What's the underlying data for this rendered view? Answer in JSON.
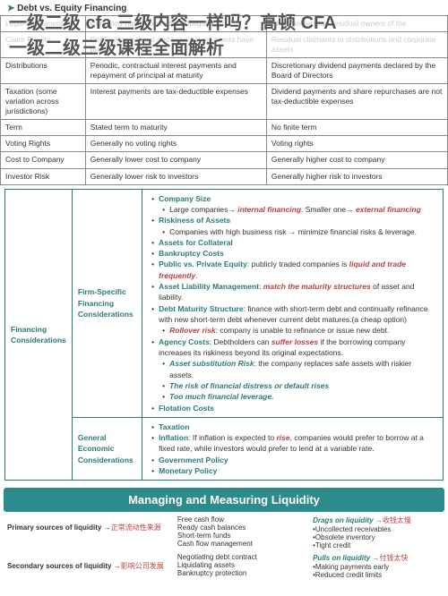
{
  "title_line1": "一级二级 cfa 三级内容一样吗？高顿 CFA",
  "title_line2": "一级二级三级课程全面解析",
  "topic_header": "Debt vs. Equity Financing",
  "table1": {
    "rows": [
      {
        "c1": "Legal Agreement",
        "c2": "Company has a contractual obligation to",
        "c3": "Shareholders are residual owners of the"
      },
      {
        "c1": "Claim Priority",
        "c2": "Debtholder interest and principal payments have priority",
        "c3": "Residual claimants to distributions and corporate assets"
      },
      {
        "c1": "Distributions",
        "c2": "Periodic, contractual interest payments and repayment of principal at maturity",
        "c3": "Discretionary dividend payments declared by the Board of Directors"
      },
      {
        "c1": "Taxation (some variation across jurisdictions)",
        "c2": "Interest payments are tax-deductible expenses",
        "c3": "Dividend payments and share repurchases are not tax-deductible expenses"
      },
      {
        "c1": "Term",
        "c2": "Stated term to maturity",
        "c3": "No finite term"
      },
      {
        "c1": "Voting Rights",
        "c2": "Generally no voting rights",
        "c3": "Voting rights"
      },
      {
        "c1": "Cost to Company",
        "c2": "Generally lower cost to company",
        "c3": "Generally higher cost to company"
      },
      {
        "c1": "Investor Risk",
        "c2": "Generally lower risk to investors",
        "c3": "Generally higher risk to investors"
      }
    ]
  },
  "table2": {
    "main_label": "Financing Considerations",
    "row1_label": "Firm-Specific Financing Considerations",
    "row2_label": "General Economic Considerations",
    "fs": {
      "i1": "Company Size",
      "i1a": "Large companies→",
      "i1b": "internal financing",
      "i1c": ". Smaller one→",
      "i1d": "external financing",
      "i2": "Riskiness of Assets",
      "i2a": "Companies with high business risk → minimize financial risks & leverage.",
      "i3": "Assets for Collateral",
      "i4": "Bankruptcy Costs",
      "i5": "Public vs. Private Equity",
      "i5a": ": publicly traded companies is",
      "i5b": "liquid and trade frequently",
      "i6": "Asset Liability Management",
      "i6a": ": ",
      "i6b": "match the maturity structures",
      "i6c": " of asset and liability.",
      "i7": "Debt Maturity Structure",
      "i7a": ": finance with short-term debt and continually refinance with new short-term debt whenever current debt matures.(a cheap option)",
      "i7r": "Rollover risk",
      "i7ra": ": company is unable to refinance or issue new debt.",
      "i8": "Agency Costs",
      "i8a": ": Debtholders can",
      "i8b": "suffer losses",
      "i8c": " if the borrowing company increases its riskiness beyond its original expectations.",
      "i8s1": "Asset substitution Risk",
      "i8s1a": ": the company replaces safe assets with riskier assets.",
      "i8s2": "The risk of financial distress or default rises",
      "i8s3": "Too much financial leverage.",
      "i9": "Flotation Costs"
    },
    "ge": {
      "i1": "Taxation",
      "i2": "Inflation",
      "i2a": ": If inflation is expected to",
      "i2b": "rise",
      "i2c": ", companies would prefer to borrow at a fixed rate, while investors would prefer to lend at a variable rate.",
      "i3": "Government Policy",
      "i4": "Monetary Policy"
    }
  },
  "sec3": {
    "header": "Managing and Measuring Liquidity",
    "primary_label": "Primary sources of liquidity →",
    "primary_red": "正常流动性来源",
    "secondary_label": "Secondary sources of liquidity →",
    "secondary_red": "影响公司发展",
    "mid_items": [
      "Free cash flow",
      "Ready cash balances",
      "Short-term funds",
      "Cash flow management"
    ],
    "mid_items2": [
      "Negotiating debt contract",
      "Liquidating assets",
      "Bankruptcy protection"
    ],
    "drags_label": "Drags on liquidity →",
    "drags_red": "收钱太慢",
    "drags_items": [
      "•Uncollected receivables",
      "•Obsolete inventory",
      "•Tight credit"
    ],
    "pulls_label": "Pulls on liquidity →",
    "pulls_red": "付钱太快",
    "pulls_items": [
      "•Making payments early",
      "•Reduced credit limits"
    ]
  }
}
